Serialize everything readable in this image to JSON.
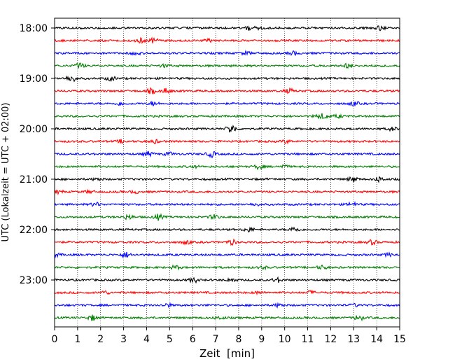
{
  "chart_data": {
    "type": "line",
    "title": "",
    "xlabel": "Zeit  [min]",
    "ylabel": "UTC (Lokalzeit = UTC + 02:00)",
    "xlim": [
      0,
      15
    ],
    "x_ticks": [
      0,
      1,
      2,
      3,
      4,
      5,
      6,
      7,
      8,
      9,
      10,
      11,
      12,
      13,
      14,
      15
    ],
    "x_tick_labels": [
      "0",
      "1",
      "2",
      "3",
      "4",
      "5",
      "6",
      "7",
      "8",
      "9",
      "10",
      "11",
      "12",
      "13",
      "14",
      "15"
    ],
    "y_tick_labels": [
      "18:00",
      "19:00",
      "20:00",
      "21:00",
      "22:00",
      "23:00"
    ],
    "grid": "vertical dotted lines at each minute",
    "trace_colors": [
      "#000000",
      "#ff0000",
      "#0000ff",
      "#007f00"
    ],
    "series": [
      {
        "start": "18:00",
        "color": "#000000"
      },
      {
        "start": "18:15",
        "color": "#ff0000"
      },
      {
        "start": "18:30",
        "color": "#0000ff"
      },
      {
        "start": "18:45",
        "color": "#007f00"
      },
      {
        "start": "19:00",
        "color": "#000000"
      },
      {
        "start": "19:15",
        "color": "#ff0000"
      },
      {
        "start": "19:30",
        "color": "#0000ff"
      },
      {
        "start": "19:45",
        "color": "#007f00"
      },
      {
        "start": "20:00",
        "color": "#000000"
      },
      {
        "start": "20:15",
        "color": "#ff0000"
      },
      {
        "start": "20:30",
        "color": "#0000ff"
      },
      {
        "start": "20:45",
        "color": "#007f00"
      },
      {
        "start": "21:00",
        "color": "#000000"
      },
      {
        "start": "21:15",
        "color": "#ff0000"
      },
      {
        "start": "21:30",
        "color": "#0000ff"
      },
      {
        "start": "21:45",
        "color": "#007f00"
      },
      {
        "start": "22:00",
        "color": "#000000"
      },
      {
        "start": "22:15",
        "color": "#ff0000"
      },
      {
        "start": "22:30",
        "color": "#0000ff"
      },
      {
        "start": "22:45",
        "color": "#007f00"
      },
      {
        "start": "23:00",
        "color": "#000000"
      },
      {
        "start": "23:15",
        "color": "#ff0000"
      },
      {
        "start": "23:30",
        "color": "#0000ff"
      },
      {
        "start": "23:45",
        "color": "#007f00"
      }
    ]
  }
}
